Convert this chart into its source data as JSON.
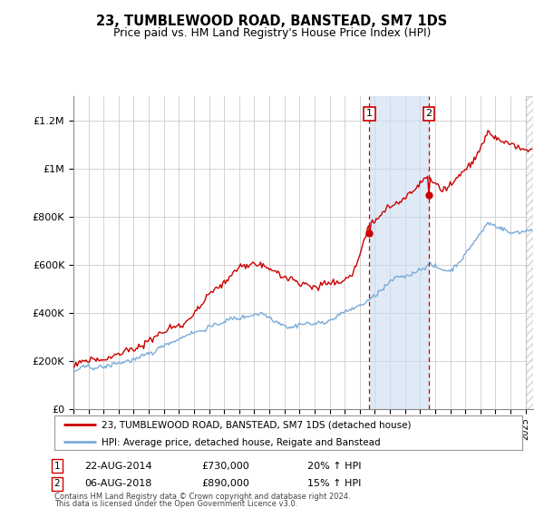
{
  "title": "23, TUMBLEWOOD ROAD, BANSTEAD, SM7 1DS",
  "subtitle": "Price paid vs. HM Land Registry's House Price Index (HPI)",
  "ylabel_ticks": [
    "£0",
    "£200K",
    "£400K",
    "£600K",
    "£800K",
    "£1M",
    "£1.2M"
  ],
  "ytick_values": [
    0,
    200000,
    400000,
    600000,
    800000,
    1000000,
    1200000
  ],
  "ylim": [
    0,
    1300000
  ],
  "xlim_start": 1995.0,
  "xlim_end": 2025.5,
  "transaction1_date": 2014.64,
  "transaction1_price": 730000,
  "transaction2_date": 2018.59,
  "transaction2_price": 890000,
  "hpi_line_color": "#7aacdb",
  "price_line_color": "#cc0000",
  "legend_line1": "23, TUMBLEWOOD ROAD, BANSTEAD, SM7 1DS (detached house)",
  "legend_line2": "HPI: Average price, detached house, Reigate and Banstead",
  "shade_color": "#ccddf0",
  "grid_color": "#cccccc",
  "background_color": "#ffffff",
  "footer1": "Contains HM Land Registry data © Crown copyright and database right 2024.",
  "footer2": "This data is licensed under the Open Government Licence v3.0."
}
